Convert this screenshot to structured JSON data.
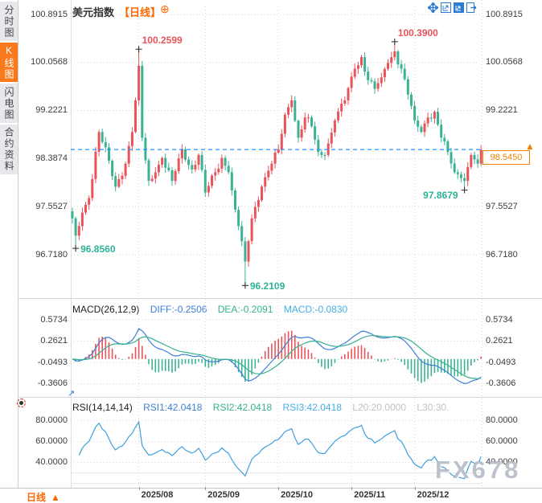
{
  "sidebar": {
    "items": [
      {
        "label": "分时图",
        "active": false
      },
      {
        "label": "K线图",
        "active": true
      },
      {
        "label": "闪电图",
        "active": false
      },
      {
        "label": "合约资料",
        "active": false
      }
    ]
  },
  "header": {
    "title": "美元指数",
    "period": "【日线】",
    "add_icon": "⊕"
  },
  "toolbar": {
    "icons": [
      "crosshair",
      "zoom-out-chart",
      "zoom-in-chart",
      "exit-chart"
    ]
  },
  "price_tag": {
    "value": "98.5450",
    "arrow": "▲"
  },
  "bottom_bar": {
    "tab_label": "日线",
    "arrow": "▲"
  },
  "watermark": "FX678",
  "macd_header": {
    "name": "MACD(26,12,9)",
    "diff": "DIFF:-0.2506",
    "dea": "DEA:-0.2091",
    "macd": "MACD:-0.0830"
  },
  "rsi_header": {
    "name": "RSI(14,14,14)",
    "rsi1": "RSI1:42.0418",
    "rsi2": "RSI2:42.0418",
    "rsi3": "RSI3:42.0418",
    "l20": "L20:20.0000",
    "l30": "L30:30."
  },
  "colors": {
    "up": "#e9545b",
    "down": "#3cb295",
    "accent_orange": "#f87a1d",
    "tag_orange": "#f08300",
    "diff_line": "#3d7fd6",
    "dea_line": "#36b18f",
    "rsi_line": "#3f9fdc",
    "current_line": "#1e90ff",
    "grid": "#d9d9d9",
    "anno_red": "#e9545b",
    "anno_green": "#2eb398"
  },
  "chart_data": {
    "type": "candlestick",
    "symbol": "美元指数",
    "interval": "日线",
    "price_axis_labels": [
      "100.8915",
      "100.0568",
      "99.2221",
      "98.3874",
      "97.5527",
      "96.7180"
    ],
    "price_axis_range": [
      96.718,
      100.8915
    ],
    "macd_axis_labels": [
      "0.5734",
      "0.2621",
      "-0.0493",
      "-0.3606"
    ],
    "rsi_axis_labels": [
      "80.0000",
      "60.0000",
      "40.0000"
    ],
    "x_axis_labels": [
      "2025/08",
      "2025/09",
      "2025/10",
      "2025/11",
      "2025/12"
    ],
    "month_tick_indices": [
      20,
      40,
      62,
      84,
      103
    ],
    "candle_count": 124,
    "close_anchors": [
      [
        0,
        97.35
      ],
      [
        1,
        97.05
      ],
      [
        3,
        97.45
      ],
      [
        5,
        97.7
      ],
      [
        8,
        98.85
      ],
      [
        11,
        98.35
      ],
      [
        13,
        97.9
      ],
      [
        16,
        98.3
      ],
      [
        18,
        98.85
      ],
      [
        19,
        99.4
      ],
      [
        20,
        100.0
      ],
      [
        21,
        98.75
      ],
      [
        23,
        98.0
      ],
      [
        25,
        98.15
      ],
      [
        27,
        98.4
      ],
      [
        30,
        98.0
      ],
      [
        33,
        98.55
      ],
      [
        36,
        98.2
      ],
      [
        38,
        98.45
      ],
      [
        40,
        97.8
      ],
      [
        43,
        98.15
      ],
      [
        45,
        98.4
      ],
      [
        47,
        98.15
      ],
      [
        49,
        97.5
      ],
      [
        51,
        96.95
      ],
      [
        52,
        96.6
      ],
      [
        54,
        97.35
      ],
      [
        57,
        97.9
      ],
      [
        60,
        98.3
      ],
      [
        62,
        98.55
      ],
      [
        64,
        99.15
      ],
      [
        66,
        99.4
      ],
      [
        68,
        98.75
      ],
      [
        70,
        99.1
      ],
      [
        72,
        98.95
      ],
      [
        74,
        98.5
      ],
      [
        76,
        98.45
      ],
      [
        79,
        99.05
      ],
      [
        82,
        99.4
      ],
      [
        85,
        99.95
      ],
      [
        87,
        100.15
      ],
      [
        89,
        99.75
      ],
      [
        91,
        99.6
      ],
      [
        93,
        99.8
      ],
      [
        95,
        100.05
      ],
      [
        97,
        100.25
      ],
      [
        99,
        99.95
      ],
      [
        101,
        99.5
      ],
      [
        103,
        99.05
      ],
      [
        105,
        98.85
      ],
      [
        107,
        99.1
      ],
      [
        109,
        99.2
      ],
      [
        111,
        98.75
      ],
      [
        113,
        98.5
      ],
      [
        115,
        98.15
      ],
      [
        117,
        98.05
      ],
      [
        118,
        98.0
      ],
      [
        120,
        98.45
      ],
      [
        122,
        98.3
      ],
      [
        123,
        98.545
      ]
    ],
    "annotations": [
      {
        "index": 1,
        "price": 96.856,
        "text": "96.8560",
        "type": "low",
        "placement": "below-right"
      },
      {
        "index": 20,
        "price": 100.2599,
        "text": "100.2599",
        "type": "high",
        "placement": "above-right"
      },
      {
        "index": 52,
        "price": 96.2109,
        "text": "96.2109",
        "type": "low",
        "placement": "below-right"
      },
      {
        "index": 97,
        "price": 100.39,
        "text": "100.3900",
        "type": "high",
        "placement": "above-right"
      },
      {
        "index": 118,
        "price": 97.8679,
        "text": "97.8679",
        "type": "low",
        "placement": "below-left"
      }
    ],
    "current_price": 98.545,
    "indicators": {
      "macd": {
        "params": [
          26,
          12,
          9
        ],
        "diff": -0.2506,
        "dea": -0.2091,
        "macd": -0.083
      },
      "rsi": {
        "params": [
          14,
          14,
          14
        ],
        "values": [
          42.0418,
          42.0418,
          42.0418
        ],
        "l20": 20.0,
        "l30": 30.0
      }
    }
  }
}
